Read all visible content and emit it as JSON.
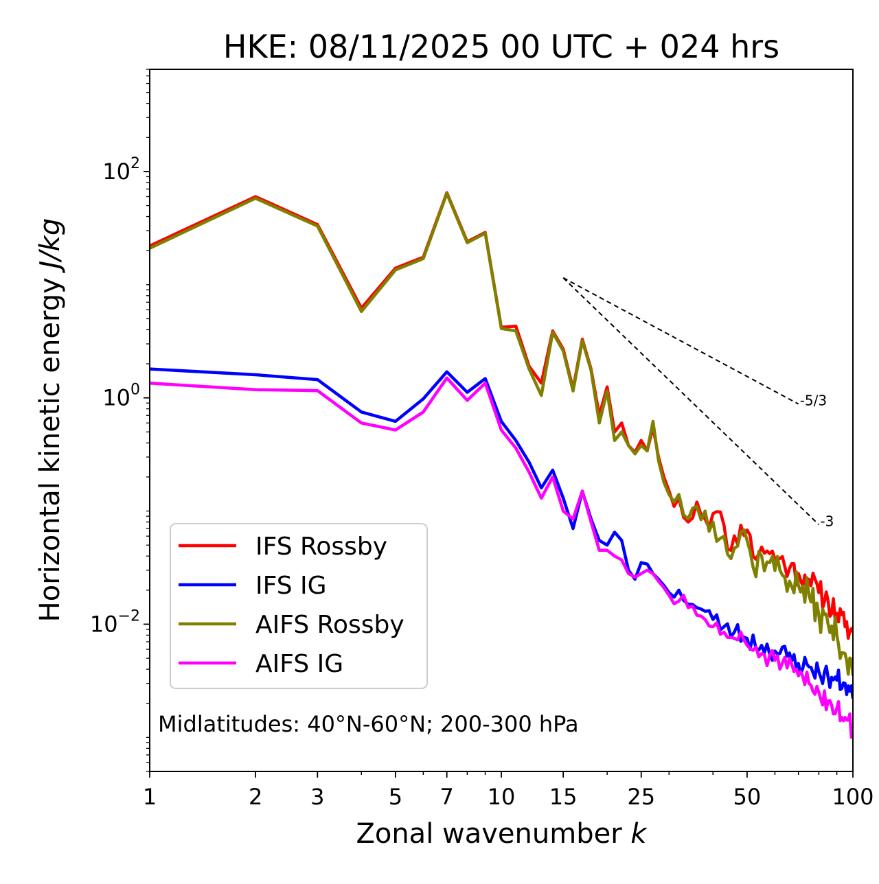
{
  "chart_data": {
    "type": "line",
    "title": "HKE: 08/11/2025 00 UTC + 024 hrs",
    "xlabel": "Zonal wavenumber",
    "xlabel_var": "k",
    "ylabel": "Horizontal kinetic energy",
    "ylabel_units": "J/kg",
    "xscale": "log",
    "yscale": "log",
    "xlim": [
      1,
      100
    ],
    "ylim": [
      0.0005,
      800
    ],
    "x_ticks": [
      {
        "value": 1,
        "label": "1"
      },
      {
        "value": 2,
        "label": "2"
      },
      {
        "value": 3,
        "label": "3"
      },
      {
        "value": 5,
        "label": "5"
      },
      {
        "value": 7,
        "label": "7"
      },
      {
        "value": 10,
        "label": "10"
      },
      {
        "value": 15,
        "label": "15"
      },
      {
        "value": 25,
        "label": "25"
      },
      {
        "value": 50,
        "label": "50"
      },
      {
        "value": 100,
        "label": "100"
      }
    ],
    "y_ticks": [
      {
        "value": 100,
        "base": "10",
        "exp": "2"
      },
      {
        "value": 1,
        "base": "10",
        "exp": "0"
      },
      {
        "value": 0.01,
        "base": "10",
        "exp": "−2"
      }
    ],
    "annotation": "Midlatitudes: 40°N-60°N; 200-300 hPa",
    "legend_position": "lower-left",
    "reference_lines": [
      {
        "label": "-5/3",
        "slope": -1.6667,
        "x0": 15,
        "y0": 11.5,
        "x1": 70,
        "color": "#000000"
      },
      {
        "label": "-3",
        "slope": -3,
        "x0": 15,
        "y0": 11.5,
        "x1": 80,
        "color": "#000000"
      }
    ],
    "series": [
      {
        "name": "IFS Rossby",
        "color": "#ff0000",
        "anchors": [
          [
            1,
            22
          ],
          [
            2,
            60
          ],
          [
            3,
            34
          ],
          [
            4,
            6.2
          ],
          [
            5,
            14
          ],
          [
            6,
            17.5
          ],
          [
            7,
            65
          ],
          [
            8,
            24
          ],
          [
            9,
            29
          ],
          [
            10,
            4.2
          ],
          [
            11,
            4.3
          ],
          [
            12,
            1.9
          ],
          [
            13,
            1.35
          ],
          [
            14,
            3.9
          ],
          [
            15,
            2.7
          ],
          [
            16,
            1.2
          ],
          [
            17,
            3.3
          ],
          [
            18,
            1.8
          ],
          [
            19,
            0.7
          ],
          [
            20,
            1.25
          ],
          [
            21,
            0.5
          ],
          [
            22,
            0.6
          ],
          [
            23,
            0.38
          ],
          [
            24,
            0.33
          ],
          [
            25,
            0.42
          ],
          [
            26,
            0.34
          ],
          [
            27,
            0.55
          ],
          [
            28,
            0.3
          ],
          [
            29,
            0.2
          ],
          [
            30,
            0.15
          ],
          [
            31,
            0.11
          ],
          [
            32,
            0.13
          ],
          [
            34,
            0.08
          ],
          [
            36,
            0.12
          ],
          [
            38,
            0.085
          ],
          [
            40,
            0.095
          ],
          [
            43,
            0.075
          ],
          [
            45,
            0.045
          ],
          [
            48,
            0.075
          ],
          [
            50,
            0.068
          ],
          [
            52,
            0.04
          ],
          [
            55,
            0.048
          ],
          [
            58,
            0.042
          ],
          [
            62,
            0.038
          ],
          [
            66,
            0.031
          ],
          [
            70,
            0.028
          ],
          [
            75,
            0.025
          ],
          [
            80,
            0.019
          ],
          [
            85,
            0.016
          ],
          [
            90,
            0.0125
          ],
          [
            95,
            0.0095
          ],
          [
            100,
            0.0085
          ]
        ],
        "noise_start": 30,
        "noise_amp": 0.12,
        "noise_seed": 11
      },
      {
        "name": "IFS IG",
        "color": "#0000ff",
        "anchors": [
          [
            1,
            1.8
          ],
          [
            2,
            1.6
          ],
          [
            3,
            1.45
          ],
          [
            4,
            0.75
          ],
          [
            5,
            0.62
          ],
          [
            6,
            0.98
          ],
          [
            7,
            1.7
          ],
          [
            8,
            1.12
          ],
          [
            9,
            1.48
          ],
          [
            10,
            0.62
          ],
          [
            11,
            0.42
          ],
          [
            12,
            0.27
          ],
          [
            13,
            0.16
          ],
          [
            14,
            0.23
          ],
          [
            15,
            0.13
          ],
          [
            16,
            0.07
          ],
          [
            17,
            0.15
          ],
          [
            18,
            0.085
          ],
          [
            19,
            0.055
          ],
          [
            20,
            0.05
          ],
          [
            21,
            0.065
          ],
          [
            22,
            0.055
          ],
          [
            23,
            0.03
          ],
          [
            24,
            0.025
          ],
          [
            25,
            0.035
          ],
          [
            26,
            0.034
          ],
          [
            27,
            0.028
          ],
          [
            28,
            0.025
          ],
          [
            29,
            0.022
          ],
          [
            30,
            0.019
          ],
          [
            32,
            0.02
          ],
          [
            34,
            0.015
          ],
          [
            36,
            0.014
          ],
          [
            38,
            0.013
          ],
          [
            40,
            0.011
          ],
          [
            43,
            0.0095
          ],
          [
            46,
            0.0085
          ],
          [
            50,
            0.0075
          ],
          [
            55,
            0.0065
          ],
          [
            60,
            0.0058
          ],
          [
            65,
            0.0052
          ],
          [
            70,
            0.0045
          ],
          [
            75,
            0.0042
          ],
          [
            80,
            0.0038
          ],
          [
            85,
            0.0034
          ],
          [
            90,
            0.0032
          ],
          [
            95,
            0.003
          ],
          [
            100,
            0.0022
          ]
        ],
        "noise_start": 22,
        "noise_amp": 0.1,
        "noise_seed": 23
      },
      {
        "name": "AIFS Rossby",
        "color": "#808000",
        "anchors": [
          [
            1,
            21
          ],
          [
            2,
            58
          ],
          [
            3,
            33
          ],
          [
            4,
            5.8
          ],
          [
            5,
            13.5
          ],
          [
            6,
            17
          ],
          [
            7,
            64
          ],
          [
            8,
            23.5
          ],
          [
            9,
            28.5
          ],
          [
            10,
            4.1
          ],
          [
            11,
            3.9
          ],
          [
            12,
            1.8
          ],
          [
            13,
            1.05
          ],
          [
            14,
            3.8
          ],
          [
            15,
            2.6
          ],
          [
            16,
            1.15
          ],
          [
            17,
            3.2
          ],
          [
            18,
            1.75
          ],
          [
            19,
            0.6
          ],
          [
            20,
            1.15
          ],
          [
            21,
            0.42
          ],
          [
            22,
            0.5
          ],
          [
            23,
            0.38
          ],
          [
            24,
            0.32
          ],
          [
            25,
            0.38
          ],
          [
            26,
            0.34
          ],
          [
            27,
            0.62
          ],
          [
            28,
            0.28
          ],
          [
            29,
            0.18
          ],
          [
            30,
            0.14
          ],
          [
            31,
            0.12
          ],
          [
            32,
            0.14
          ],
          [
            34,
            0.085
          ],
          [
            36,
            0.11
          ],
          [
            38,
            0.1
          ],
          [
            40,
            0.08
          ],
          [
            43,
            0.06
          ],
          [
            45,
            0.038
          ],
          [
            48,
            0.065
          ],
          [
            50,
            0.055
          ],
          [
            52,
            0.032
          ],
          [
            55,
            0.04
          ],
          [
            58,
            0.035
          ],
          [
            62,
            0.03
          ],
          [
            66,
            0.024
          ],
          [
            70,
            0.022
          ],
          [
            75,
            0.018
          ],
          [
            80,
            0.012
          ],
          [
            85,
            0.01
          ],
          [
            90,
            0.008
          ],
          [
            95,
            0.0055
          ],
          [
            100,
            0.0035
          ]
        ],
        "noise_start": 30,
        "noise_amp": 0.14,
        "noise_seed": 37
      },
      {
        "name": "AIFS IG",
        "color": "#ff00ff",
        "anchors": [
          [
            1,
            1.35
          ],
          [
            2,
            1.18
          ],
          [
            3,
            1.16
          ],
          [
            4,
            0.6
          ],
          [
            5,
            0.52
          ],
          [
            6,
            0.75
          ],
          [
            7,
            1.5
          ],
          [
            8,
            0.95
          ],
          [
            9,
            1.35
          ],
          [
            10,
            0.52
          ],
          [
            11,
            0.36
          ],
          [
            12,
            0.22
          ],
          [
            13,
            0.13
          ],
          [
            14,
            0.2
          ],
          [
            15,
            0.1
          ],
          [
            16,
            0.085
          ],
          [
            17,
            0.15
          ],
          [
            18,
            0.08
          ],
          [
            19,
            0.045
          ],
          [
            20,
            0.045
          ],
          [
            21,
            0.04
          ],
          [
            22,
            0.037
          ],
          [
            23,
            0.028
          ],
          [
            24,
            0.026
          ],
          [
            25,
            0.028
          ],
          [
            26,
            0.03
          ],
          [
            27,
            0.028
          ],
          [
            28,
            0.024
          ],
          [
            29,
            0.021
          ],
          [
            30,
            0.018
          ],
          [
            32,
            0.016
          ],
          [
            34,
            0.014
          ],
          [
            36,
            0.012
          ],
          [
            38,
            0.011
          ],
          [
            40,
            0.0095
          ],
          [
            43,
            0.0085
          ],
          [
            46,
            0.0075
          ],
          [
            50,
            0.0065
          ],
          [
            55,
            0.0055
          ],
          [
            60,
            0.0048
          ],
          [
            65,
            0.0041
          ],
          [
            70,
            0.0035
          ],
          [
            75,
            0.003
          ],
          [
            80,
            0.0025
          ],
          [
            85,
            0.0021
          ],
          [
            90,
            0.0018
          ],
          [
            95,
            0.0015
          ],
          [
            100,
            0.0012
          ]
        ],
        "noise_start": 22,
        "noise_amp": 0.1,
        "noise_seed": 51
      }
    ]
  }
}
